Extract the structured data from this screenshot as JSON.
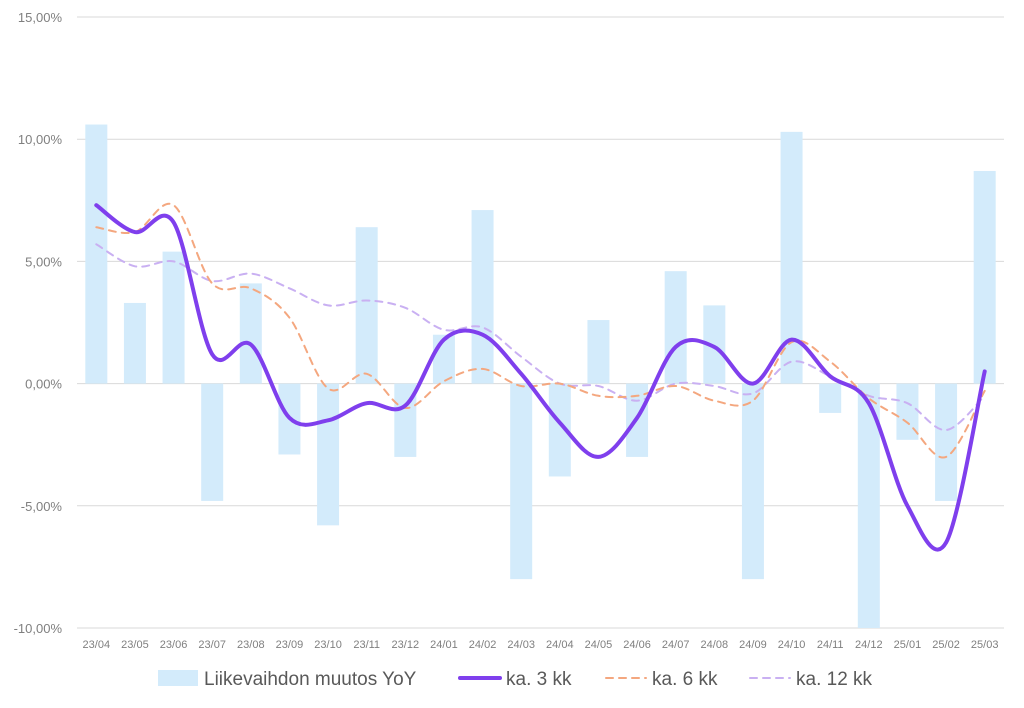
{
  "chart_data": {
    "type": "bar",
    "categories": [
      "23/04",
      "23/05",
      "23/06",
      "23/07",
      "23/08",
      "23/09",
      "23/10",
      "23/11",
      "23/12",
      "24/01",
      "24/02",
      "24/03",
      "24/04",
      "24/05",
      "24/06",
      "24/07",
      "24/08",
      "24/09",
      "24/10",
      "24/11",
      "24/12",
      "25/01",
      "25/02",
      "25/03"
    ],
    "ylim": [
      -10,
      15
    ],
    "yticks": [
      {
        "value": -10,
        "label": "-10,00%"
      },
      {
        "value": -5,
        "label": "-5,00%"
      },
      {
        "value": 0,
        "label": "0,00%"
      },
      {
        "value": 5,
        "label": "5,00%"
      },
      {
        "value": 10,
        "label": "10,00%"
      },
      {
        "value": 15,
        "label": "15,00%"
      }
    ],
    "grid": true,
    "legend_position": "bottom",
    "series": [
      {
        "name": "Liikevaihdon muutos YoY",
        "type": "bar",
        "color": "#d3ebfb",
        "values": [
          10.6,
          3.3,
          5.4,
          -4.8,
          4.1,
          -2.9,
          -5.8,
          6.4,
          -3.0,
          2.0,
          7.1,
          -8.0,
          -3.8,
          2.6,
          -3.0,
          4.6,
          3.2,
          -8.0,
          10.3,
          -1.2,
          -10.0,
          -2.3,
          -4.8,
          8.7
        ]
      },
      {
        "name": "ka. 3 kk",
        "type": "line",
        "style": "solid",
        "color": "#7f3fed",
        "values": [
          7.3,
          6.2,
          6.6,
          1.2,
          1.6,
          -1.4,
          -1.5,
          -0.8,
          -0.9,
          1.8,
          2.0,
          0.4,
          -1.6,
          -3.0,
          -1.4,
          1.5,
          1.5,
          0.0,
          1.8,
          0.3,
          -0.8,
          -5.0,
          -6.5,
          0.5
        ]
      },
      {
        "name": "ka. 6 kk",
        "type": "line",
        "style": "dashed",
        "color": "#f4a77f",
        "values": [
          6.4,
          6.2,
          7.3,
          4.1,
          3.9,
          2.7,
          -0.2,
          0.4,
          -1.0,
          0.1,
          0.6,
          -0.1,
          0.0,
          -0.5,
          -0.5,
          -0.1,
          -0.7,
          -0.7,
          1.7,
          0.9,
          -0.6,
          -1.6,
          -3.0,
          -0.3
        ]
      },
      {
        "name": "ka. 12 kk",
        "type": "line",
        "style": "dashed",
        "color": "#c9b0f2",
        "values": [
          5.7,
          4.8,
          5.0,
          4.2,
          4.5,
          3.9,
          3.2,
          3.4,
          3.1,
          2.2,
          2.3,
          1.1,
          0.0,
          -0.1,
          -0.7,
          0.0,
          -0.1,
          -0.4,
          0.9,
          0.3,
          -0.5,
          -0.8,
          -1.9,
          -0.5
        ]
      }
    ]
  }
}
